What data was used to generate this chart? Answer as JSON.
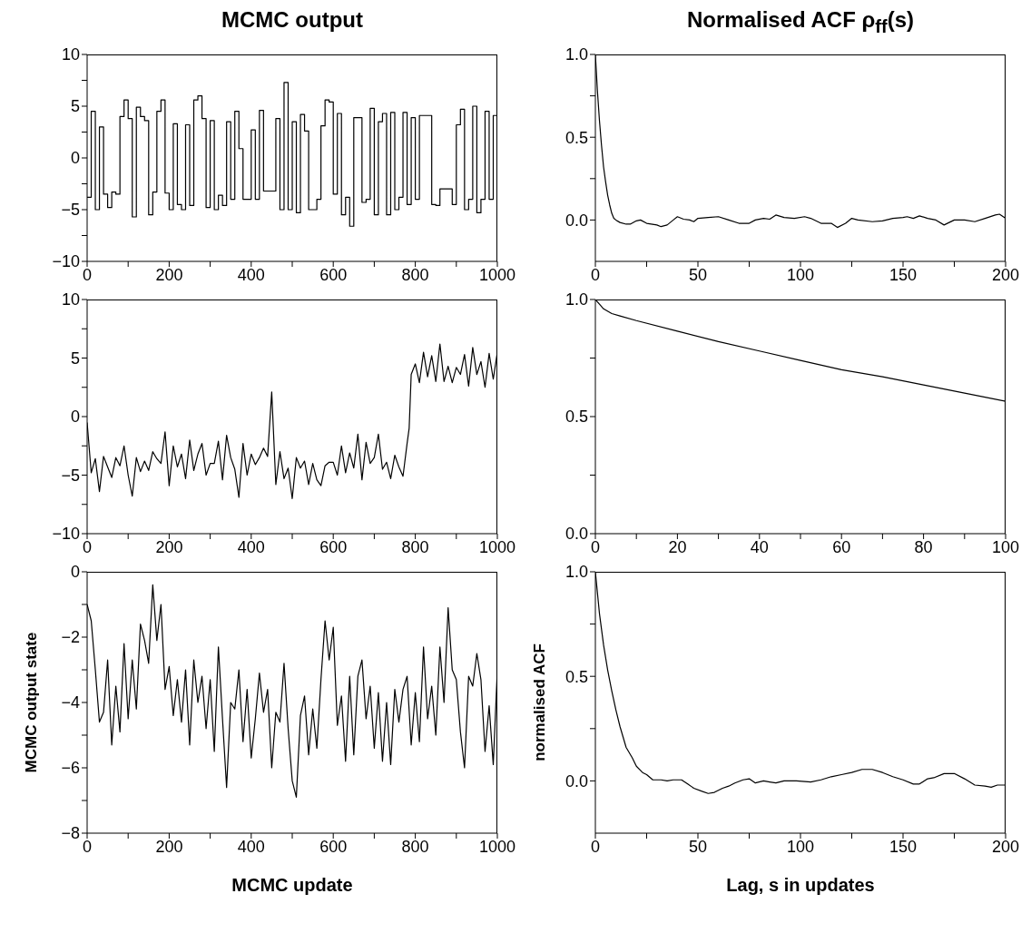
{
  "chart_data": [
    {
      "type": "step",
      "title": "MCMC output",
      "color": "#000000",
      "xlim": [
        0,
        1000
      ],
      "ylim": [
        -10,
        10
      ],
      "xticks": [
        0,
        {
          "value": 100,
          "label": null
        },
        200,
        {
          "value": 300,
          "label": null
        },
        400,
        {
          "value": 500,
          "label": null
        },
        600,
        {
          "value": 700,
          "label": null
        },
        800,
        {
          "value": 900,
          "label": null
        },
        1000
      ],
      "yticks": [
        {
          "value": -10,
          "label": "−10"
        },
        {
          "value": -7.5,
          "label": null
        },
        {
          "value": -5,
          "label": "−5"
        },
        {
          "value": -2.5,
          "label": null
        },
        0,
        {
          "value": 2.5,
          "label": null
        },
        5,
        {
          "value": 7.5,
          "label": null
        },
        10
      ],
      "x": [
        0,
        10,
        20,
        30,
        40,
        50,
        60,
        70,
        80,
        90,
        100,
        110,
        120,
        130,
        140,
        150,
        160,
        170,
        180,
        190,
        200,
        210,
        220,
        230,
        240,
        250,
        260,
        270,
        280,
        290,
        300,
        310,
        320,
        330,
        340,
        350,
        360,
        370,
        380,
        390,
        400,
        410,
        420,
        430,
        440,
        450,
        460,
        470,
        480,
        490,
        500,
        510,
        520,
        530,
        540,
        550,
        560,
        570,
        580,
        590,
        600,
        610,
        620,
        630,
        640,
        650,
        660,
        670,
        680,
        690,
        700,
        710,
        720,
        730,
        740,
        750,
        760,
        770,
        780,
        790,
        800,
        810,
        820,
        830,
        840,
        850,
        860,
        870,
        880,
        890,
        900,
        910,
        920,
        930,
        940,
        950,
        960,
        970,
        980,
        990,
        1000
      ],
      "values": [
        -3.8,
        4.5,
        -5,
        3,
        -3.5,
        -4.8,
        -3.3,
        -3.5,
        4,
        5.6,
        3.8,
        -5.7,
        4.9,
        4,
        3.6,
        -5.5,
        -3.3,
        4.5,
        5.6,
        -3.4,
        -5,
        3.3,
        -4.5,
        -5,
        3.2,
        -4.6,
        5.6,
        6,
        3.8,
        -4.8,
        3.6,
        -5,
        -3.6,
        -4.6,
        3.5,
        -4,
        4.5,
        0.9,
        -4,
        -4,
        2.7,
        -4,
        4.6,
        -3.2,
        -3.2,
        -3.2,
        3.8,
        -5,
        7.3,
        -5,
        3.5,
        -5.3,
        4.2,
        2.6,
        -5,
        -5,
        -4,
        3.1,
        5.6,
        5.4,
        -3.5,
        4.3,
        -5.5,
        -3.8,
        -6.6,
        3.9,
        3.9,
        -4.3,
        -4,
        4.8,
        -5.5,
        3.5,
        4.3,
        -5.5,
        4.4,
        -5,
        -3.8,
        4.4,
        -4.5,
        3.9,
        -4,
        4.1,
        4.1,
        4.1,
        -4.5,
        -4.6,
        -3,
        -3,
        -3,
        -4.5,
        3.2,
        4.7,
        -5,
        -4,
        5,
        -5.3,
        -4,
        4.5,
        -4,
        4.1,
        5
      ]
    },
    {
      "type": "line",
      "title": "Normalised ACF ρ$_{ff}$(s)",
      "color": "#000000",
      "xlim": [
        0,
        200
      ],
      "ylim": [
        -0.25,
        1
      ],
      "xticks": [
        0,
        {
          "value": 25,
          "label": null
        },
        50,
        {
          "value": 75,
          "label": null
        },
        100,
        {
          "value": 125,
          "label": null
        },
        150,
        {
          "value": 175,
          "label": null
        },
        200
      ],
      "yticks": [
        {
          "value": 0,
          "label": "0.0"
        },
        {
          "value": 0.25,
          "label": null
        },
        {
          "value": 0.5,
          "label": "0.5"
        },
        {
          "value": 0.75,
          "label": null
        },
        {
          "value": 1,
          "label": "1.0"
        }
      ],
      "x": [
        0,
        1,
        2,
        3,
        4,
        5,
        6,
        7,
        8,
        9,
        10,
        12,
        15,
        17,
        20,
        22,
        25,
        30,
        32,
        35,
        38,
        40,
        43,
        46,
        48,
        50,
        55,
        60,
        65,
        70,
        75,
        78,
        82,
        85,
        88,
        92,
        97,
        102,
        105,
        110,
        115,
        118,
        122,
        125,
        128,
        135,
        140,
        145,
        150,
        152,
        155,
        158,
        162,
        166,
        170,
        175,
        180,
        185,
        190,
        195,
        197,
        200
      ],
      "values": [
        1,
        0.78,
        0.6,
        0.45,
        0.32,
        0.23,
        0.15,
        0.09,
        0.04,
        0.01,
        0,
        -0.015,
        -0.025,
        -0.025,
        -0.005,
        0,
        -0.02,
        -0.03,
        -0.04,
        -0.03,
        0,
        0.02,
        0.005,
        0,
        -0.01,
        0.01,
        0.015,
        0.02,
        0,
        -0.02,
        -0.02,
        0,
        0.01,
        0.005,
        0.03,
        0.015,
        0.01,
        0.02,
        0.01,
        -0.02,
        -0.02,
        -0.045,
        -0.02,
        0.01,
        0,
        -0.01,
        -0.005,
        0.01,
        0.015,
        0.02,
        0.01,
        0.025,
        0.01,
        0,
        -0.03,
        0,
        0,
        -0.01,
        0.01,
        0.03,
        0.035,
        0.01
      ]
    },
    {
      "type": "line",
      "color": "#000000",
      "xlim": [
        0,
        1000
      ],
      "ylim": [
        -10,
        10
      ],
      "xticks": [
        0,
        {
          "value": 100,
          "label": null
        },
        200,
        {
          "value": 300,
          "label": null
        },
        400,
        {
          "value": 500,
          "label": null
        },
        600,
        {
          "value": 700,
          "label": null
        },
        800,
        {
          "value": 900,
          "label": null
        },
        1000
      ],
      "yticks": [
        {
          "value": -10,
          "label": "−10"
        },
        {
          "value": -7.5,
          "label": null
        },
        {
          "value": -5,
          "label": "−5"
        },
        {
          "value": -2.5,
          "label": null
        },
        0,
        {
          "value": 2.5,
          "label": null
        },
        5,
        {
          "value": 7.5,
          "label": null
        },
        10
      ],
      "x": [
        0,
        10,
        20,
        30,
        40,
        50,
        60,
        70,
        80,
        90,
        100,
        110,
        120,
        130,
        140,
        150,
        160,
        170,
        180,
        190,
        200,
        210,
        220,
        230,
        240,
        250,
        260,
        270,
        280,
        290,
        300,
        310,
        320,
        330,
        340,
        350,
        360,
        370,
        380,
        390,
        400,
        410,
        420,
        430,
        440,
        450,
        460,
        470,
        480,
        490,
        500,
        510,
        520,
        530,
        540,
        550,
        560,
        570,
        580,
        590,
        600,
        610,
        620,
        630,
        640,
        650,
        660,
        670,
        680,
        690,
        700,
        710,
        720,
        730,
        740,
        750,
        760,
        770,
        780,
        785,
        790,
        800,
        810,
        820,
        830,
        840,
        850,
        860,
        870,
        880,
        890,
        900,
        910,
        920,
        930,
        940,
        950,
        960,
        970,
        980,
        990,
        1000
      ],
      "values": [
        -0.5,
        -4.8,
        -3.6,
        -6.4,
        -3.4,
        -4.3,
        -5.2,
        -3.5,
        -4.2,
        -2.5,
        -5,
        -6.8,
        -3.5,
        -4.7,
        -3.8,
        -4.6,
        -3,
        -3.6,
        -4,
        -1.3,
        -5.9,
        -2.5,
        -4.3,
        -3.2,
        -5.3,
        -2,
        -4.6,
        -3.2,
        -2.3,
        -5,
        -4,
        -4,
        -2.1,
        -5.4,
        -1.6,
        -3.5,
        -4.5,
        -6.9,
        -2.3,
        -5,
        -3.2,
        -4.1,
        -3.5,
        -2.7,
        -3.4,
        2.1,
        -5.8,
        -3,
        -5.3,
        -4.4,
        -7,
        -3.5,
        -4.4,
        -3.8,
        -5.8,
        -4,
        -5.4,
        -5.9,
        -4.2,
        -3.9,
        -3.9,
        -5,
        -2.5,
        -4.8,
        -3.1,
        -4.4,
        -1.5,
        -5.4,
        -2.2,
        -4,
        -3.5,
        -1.5,
        -4.5,
        -3.9,
        -5.3,
        -3.3,
        -4.3,
        -5.1,
        -2.3,
        -1,
        3.6,
        4.5,
        2.9,
        5.5,
        3.4,
        5.2,
        3,
        6.2,
        3,
        4.3,
        2.9,
        4.2,
        3.6,
        5.3,
        2.6,
        5.9,
        3.6,
        4.7,
        2.5,
        5.4,
        3.2,
        5.5
      ]
    },
    {
      "type": "line",
      "color": "#000000",
      "xlim": [
        0,
        100
      ],
      "ylim": [
        0,
        1
      ],
      "xticks": [
        0,
        {
          "value": 10,
          "label": null
        },
        20,
        {
          "value": 30,
          "label": null
        },
        40,
        {
          "value": 50,
          "label": null
        },
        60,
        {
          "value": 70,
          "label": null
        },
        80,
        {
          "value": 90,
          "label": null
        },
        100
      ],
      "yticks": [
        {
          "value": 0,
          "label": "0.0"
        },
        {
          "value": 0.25,
          "label": null
        },
        {
          "value": 0.5,
          "label": "0.5"
        },
        {
          "value": 0.75,
          "label": null
        },
        {
          "value": 1,
          "label": "1.0"
        }
      ],
      "x": [
        0,
        1,
        2,
        4,
        6,
        10,
        20,
        30,
        40,
        50,
        60,
        70,
        80,
        90,
        100
      ],
      "values": [
        1,
        0.98,
        0.96,
        0.94,
        0.93,
        0.91,
        0.865,
        0.82,
        0.78,
        0.74,
        0.7,
        0.67,
        0.635,
        0.6,
        0.565
      ]
    },
    {
      "type": "line",
      "xlabel": "MCMC update",
      "ylabel": "MCMC output state",
      "color": "#000000",
      "xlim": [
        0,
        1000
      ],
      "ylim": [
        -8,
        0
      ],
      "xticks": [
        0,
        {
          "value": 100,
          "label": null
        },
        200,
        {
          "value": 300,
          "label": null
        },
        400,
        {
          "value": 500,
          "label": null
        },
        600,
        {
          "value": 700,
          "label": null
        },
        800,
        {
          "value": 900,
          "label": null
        },
        1000
      ],
      "yticks": [
        {
          "value": -8,
          "label": "−8"
        },
        {
          "value": -7,
          "label": null
        },
        {
          "value": -6,
          "label": "−6"
        },
        {
          "value": -5,
          "label": null
        },
        {
          "value": -4,
          "label": "−4"
        },
        {
          "value": -3,
          "label": null
        },
        {
          "value": -2,
          "label": "−2"
        },
        {
          "value": -1,
          "label": null
        },
        0
      ],
      "x": [
        0,
        10,
        20,
        30,
        40,
        50,
        60,
        70,
        80,
        90,
        100,
        110,
        120,
        130,
        140,
        150,
        160,
        170,
        180,
        190,
        200,
        210,
        220,
        230,
        240,
        250,
        260,
        270,
        280,
        290,
        300,
        310,
        320,
        330,
        340,
        350,
        360,
        370,
        380,
        390,
        400,
        410,
        420,
        430,
        440,
        450,
        460,
        470,
        480,
        490,
        500,
        510,
        520,
        530,
        540,
        550,
        560,
        570,
        580,
        590,
        600,
        610,
        620,
        630,
        640,
        650,
        660,
        670,
        680,
        690,
        700,
        710,
        720,
        730,
        740,
        750,
        760,
        770,
        780,
        790,
        800,
        810,
        820,
        830,
        840,
        850,
        860,
        870,
        880,
        890,
        900,
        910,
        920,
        930,
        940,
        950,
        960,
        970,
        980,
        990,
        1000
      ],
      "values": [
        -1,
        -1.5,
        -3,
        -4.6,
        -4.3,
        -2.7,
        -5.3,
        -3.5,
        -4.9,
        -2.2,
        -4.5,
        -2.7,
        -4.2,
        -1.6,
        -2.1,
        -2.8,
        -0.4,
        -2.1,
        -1,
        -3.6,
        -2.9,
        -4.4,
        -3.3,
        -4.6,
        -3,
        -5.3,
        -2.7,
        -4,
        -3.2,
        -4.8,
        -3.3,
        -5.5,
        -2.3,
        -4.5,
        -6.6,
        -4,
        -4.2,
        -3,
        -5.2,
        -3.6,
        -5.7,
        -4.5,
        -3.1,
        -4.3,
        -3.6,
        -6,
        -4.3,
        -4.6,
        -2.8,
        -4.8,
        -6.4,
        -6.9,
        -4.4,
        -3.8,
        -5.6,
        -4.2,
        -5.4,
        -3.3,
        -1.5,
        -2.7,
        -1.7,
        -4.7,
        -3.8,
        -5.8,
        -3.2,
        -5.6,
        -3.2,
        -2.7,
        -4.5,
        -3.5,
        -5.4,
        -3.7,
        -5.8,
        -4,
        -5.9,
        -3.6,
        -4.6,
        -3.6,
        -3.2,
        -5.3,
        -3.7,
        -5.2,
        -2.3,
        -4.5,
        -3.5,
        -5,
        -2.3,
        -4,
        -1.1,
        -3,
        -3.3,
        -4.9,
        -6,
        -3.2,
        -3.5,
        -2.5,
        -3.3,
        -5.5,
        -4.1,
        -5.9,
        -3
      ]
    },
    {
      "type": "line",
      "xlabel": "Lag, s in updates",
      "ylabel": "normalised ACF",
      "color": "#000000",
      "xlim": [
        0,
        200
      ],
      "ylim": [
        -0.25,
        1
      ],
      "xticks": [
        0,
        {
          "value": 25,
          "label": null
        },
        50,
        {
          "value": 75,
          "label": null
        },
        100,
        {
          "value": 125,
          "label": null
        },
        150,
        {
          "value": 175,
          "label": null
        },
        200
      ],
      "yticks": [
        {
          "value": 0,
          "label": "0.0"
        },
        {
          "value": 0.25,
          "label": null
        },
        {
          "value": 0.5,
          "label": "0.5"
        },
        {
          "value": 0.75,
          "label": null
        },
        {
          "value": 1,
          "label": "1.0"
        }
      ],
      "x": [
        0,
        2,
        4,
        6,
        8,
        10,
        12,
        15,
        18,
        20,
        23,
        25,
        28,
        32,
        35,
        38,
        42,
        45,
        48,
        52,
        55,
        58,
        62,
        65,
        68,
        72,
        75,
        78,
        82,
        85,
        88,
        92,
        98,
        105,
        110,
        115,
        120,
        125,
        130,
        135,
        140,
        145,
        150,
        155,
        158,
        162,
        165,
        170,
        175,
        180,
        185,
        190,
        193,
        196,
        200
      ],
      "values": [
        1,
        0.8,
        0.65,
        0.53,
        0.43,
        0.34,
        0.26,
        0.16,
        0.11,
        0.07,
        0.04,
        0.03,
        0.005,
        0.005,
        0,
        0.005,
        0.005,
        -0.015,
        -0.035,
        -0.05,
        -0.06,
        -0.055,
        -0.035,
        -0.025,
        -0.01,
        0.005,
        0.01,
        -0.01,
        0,
        -0.005,
        -0.01,
        0,
        0,
        -0.005,
        0.005,
        0.02,
        0.03,
        0.04,
        0.055,
        0.055,
        0.04,
        0.02,
        0.005,
        -0.015,
        -0.015,
        0.01,
        0.015,
        0.035,
        0.035,
        0.01,
        -0.02,
        -0.025,
        -0.03,
        -0.02,
        -0.02
      ]
    }
  ]
}
